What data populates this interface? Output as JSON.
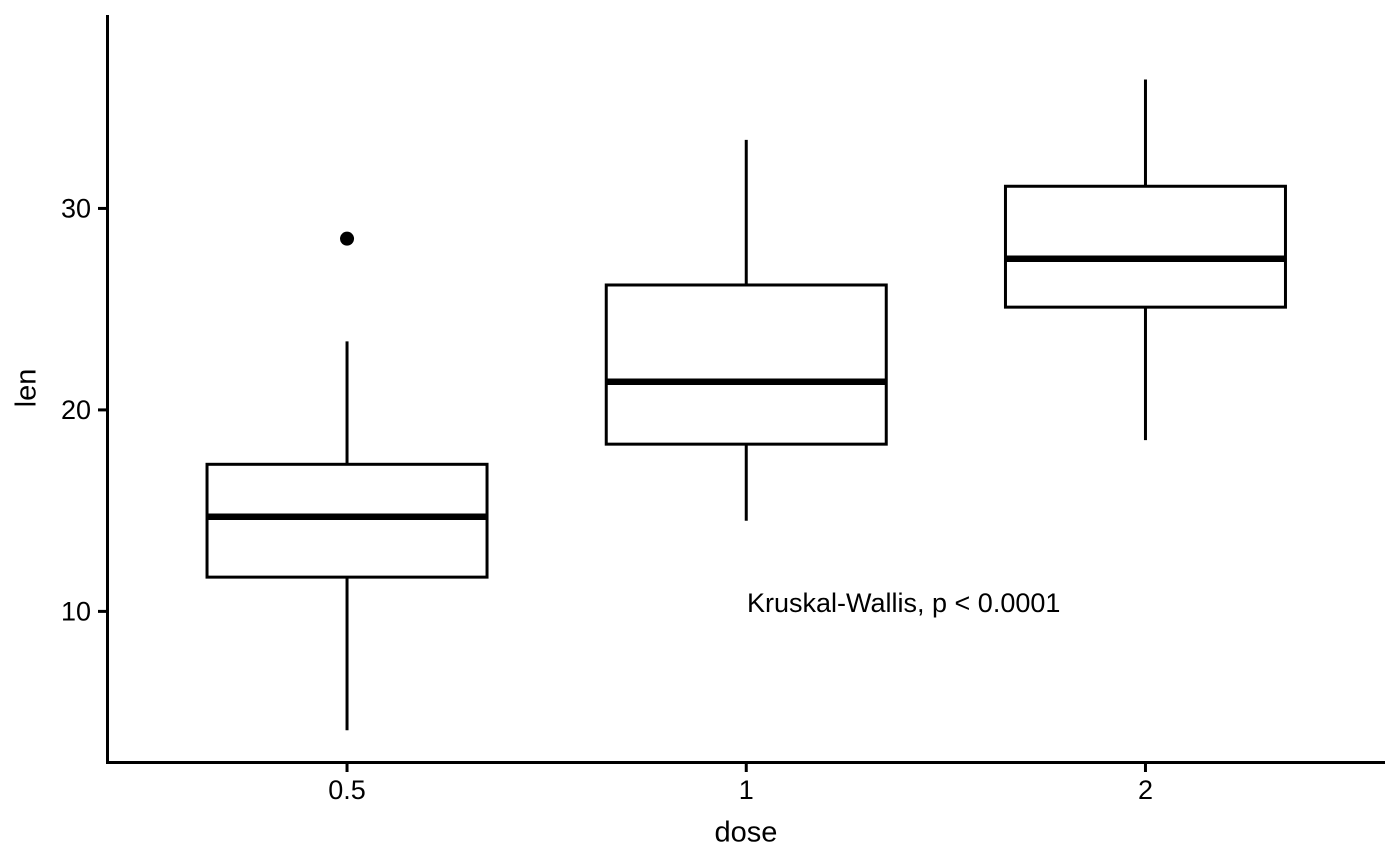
{
  "chart_data": {
    "type": "boxplot",
    "title": "",
    "xlabel": "dose",
    "ylabel": "len",
    "categories": [
      "0.5",
      "1",
      "2"
    ],
    "y_ticks": [
      10,
      20,
      30
    ],
    "ylim": [
      2.5,
      39.6
    ],
    "grid": false,
    "legend": "none",
    "color": "#000000",
    "background": "#FFFFFF",
    "annotation": {
      "text": "Kruskal-Wallis, p < 0.0001",
      "test": "Kruskal-Wallis",
      "p_display": "p < 0.0001",
      "y_value": 10
    },
    "series": [
      {
        "category": "0.5",
        "whisker_low": 4.1,
        "q1": 11.7,
        "median": 14.7,
        "q3": 17.3,
        "whisker_high": 23.4,
        "outliers": [
          28.5
        ]
      },
      {
        "category": "1",
        "whisker_low": 14.5,
        "q1": 18.3,
        "median": 21.4,
        "q3": 26.2,
        "whisker_high": 33.4,
        "outliers": []
      },
      {
        "category": "2",
        "whisker_low": 18.5,
        "q1": 25.1,
        "median": 27.5,
        "q3": 31.1,
        "whisker_high": 36.4,
        "outliers": []
      }
    ]
  }
}
